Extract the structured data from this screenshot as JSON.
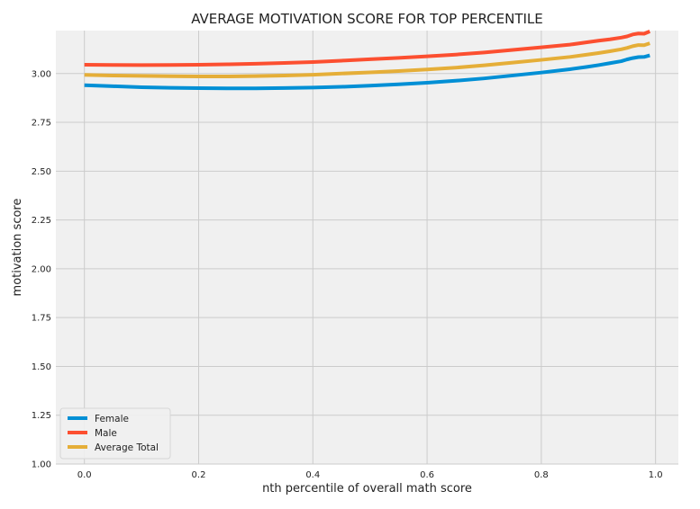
{
  "chart_data": {
    "type": "line",
    "title": "AVERAGE MOTIVATION SCORE FOR TOP PERCENTILE",
    "xlabel": "nth percentile of overall math score",
    "ylabel": "motivation score",
    "xlim": [
      -0.05,
      1.04
    ],
    "ylim": [
      1.0,
      3.22
    ],
    "x_ticks": [
      0.0,
      0.2,
      0.4,
      0.6,
      0.8,
      1.0
    ],
    "x_tick_labels": [
      "0.0",
      "0.2",
      "0.4",
      "0.6",
      "0.8",
      "1.0"
    ],
    "y_ticks": [
      1.0,
      1.25,
      1.5,
      1.75,
      2.0,
      2.25,
      2.5,
      2.75,
      3.0
    ],
    "y_tick_labels": [
      "1.00",
      "1.25",
      "1.50",
      "1.75",
      "2.00",
      "2.25",
      "2.50",
      "2.75",
      "3.00"
    ],
    "grid": true,
    "legend_position": "lower-left",
    "background_color": "#f0f0f0",
    "grid_color": "#cbcbcb",
    "x": [
      0.0,
      0.05,
      0.1,
      0.15,
      0.2,
      0.25,
      0.3,
      0.35,
      0.4,
      0.45,
      0.5,
      0.55,
      0.6,
      0.65,
      0.7,
      0.75,
      0.8,
      0.85,
      0.88,
      0.9,
      0.92,
      0.94,
      0.95,
      0.96,
      0.97,
      0.98,
      0.99
    ],
    "series": [
      {
        "name": "Female",
        "color": "#008fd5",
        "values": [
          2.94,
          2.935,
          2.93,
          2.927,
          2.925,
          2.924,
          2.924,
          2.926,
          2.928,
          2.932,
          2.938,
          2.945,
          2.953,
          2.963,
          2.975,
          2.99,
          3.005,
          3.022,
          3.034,
          3.043,
          3.053,
          3.063,
          3.072,
          3.079,
          3.084,
          3.085,
          3.093
        ]
      },
      {
        "name": "Male",
        "color": "#fc4f30",
        "values": [
          3.045,
          3.044,
          3.043,
          3.044,
          3.045,
          3.047,
          3.05,
          3.054,
          3.059,
          3.066,
          3.073,
          3.08,
          3.088,
          3.097,
          3.108,
          3.121,
          3.134,
          3.148,
          3.16,
          3.168,
          3.175,
          3.184,
          3.19,
          3.2,
          3.205,
          3.204,
          3.216
        ]
      },
      {
        "name": "Average Total",
        "color": "#e5ae38",
        "values": [
          2.993,
          2.99,
          2.988,
          2.986,
          2.985,
          2.985,
          2.987,
          2.99,
          2.994,
          3.0,
          3.006,
          3.013,
          3.021,
          3.03,
          3.042,
          3.056,
          3.07,
          3.085,
          3.097,
          3.105,
          3.114,
          3.124,
          3.131,
          3.14,
          3.146,
          3.145,
          3.155
        ]
      }
    ]
  }
}
